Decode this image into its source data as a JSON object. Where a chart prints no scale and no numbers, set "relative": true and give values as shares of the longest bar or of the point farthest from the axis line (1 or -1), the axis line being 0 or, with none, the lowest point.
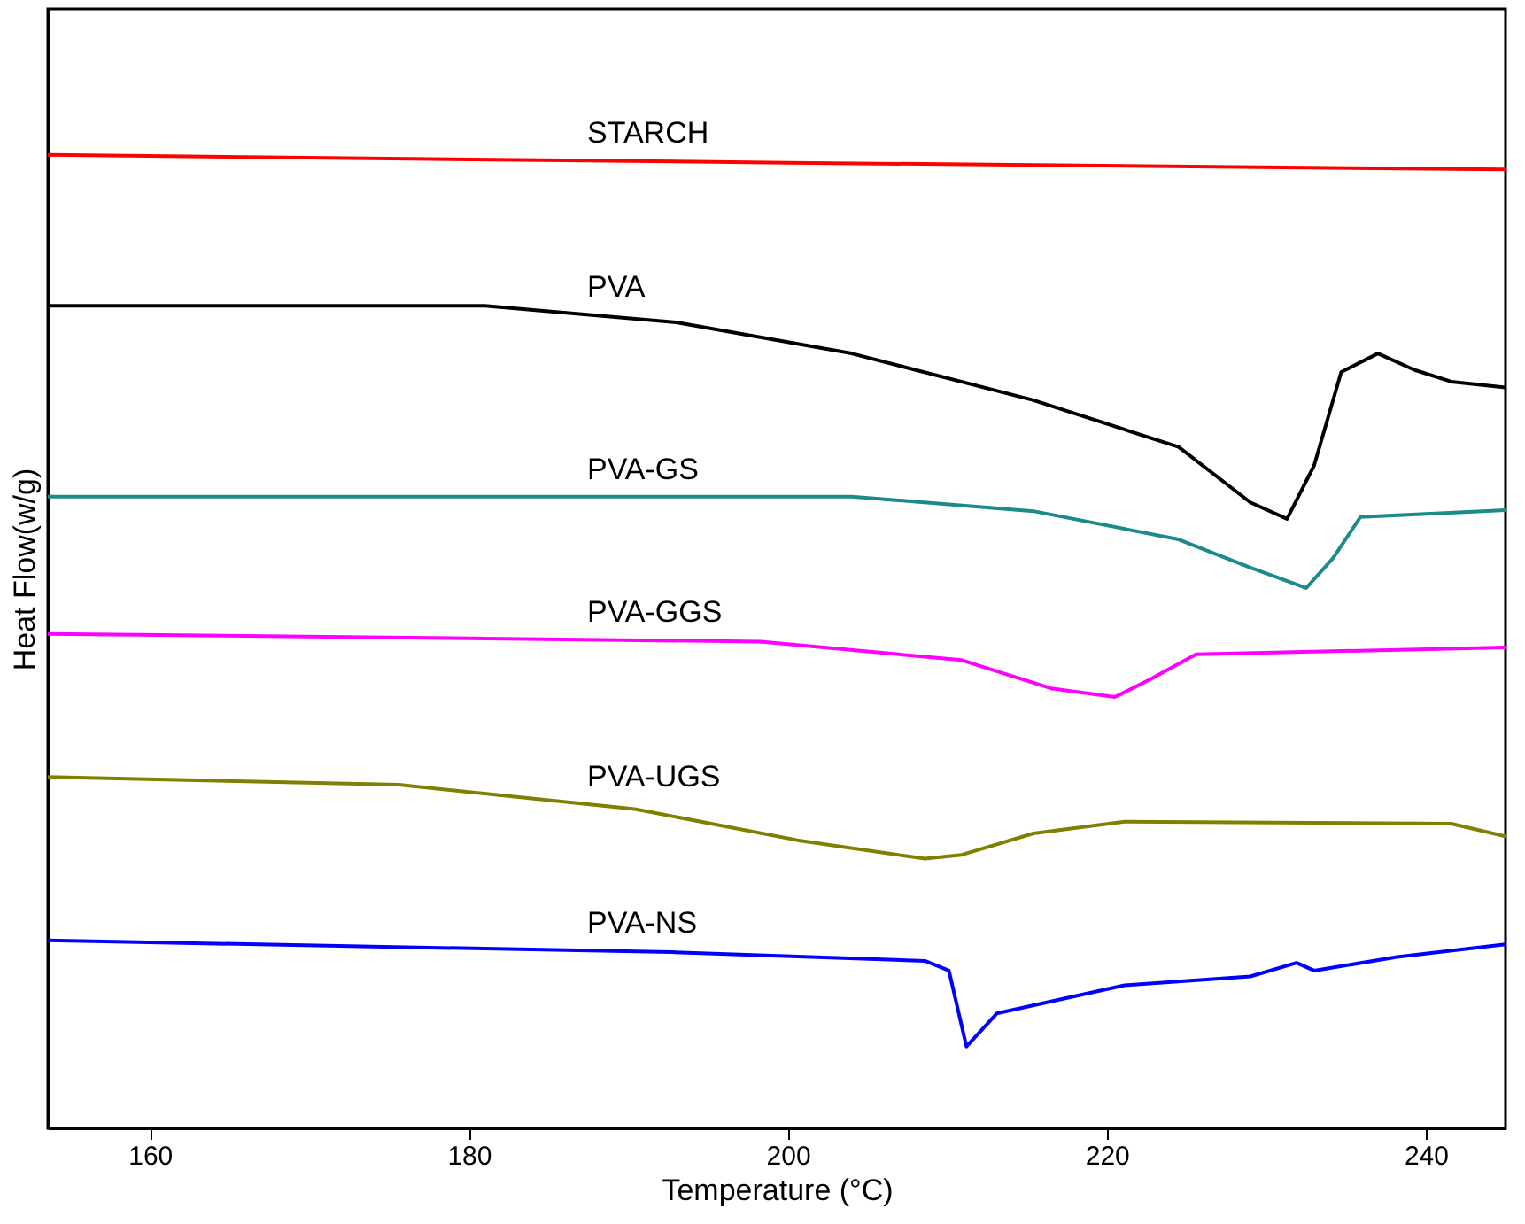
{
  "chart_data": {
    "type": "line",
    "relative": true,
    "xlabel": "Temperature (°C)",
    "ylabel": "Heat Flow(w/g)",
    "xlim": [
      153.6,
      245
    ],
    "xticks": [
      160,
      180,
      200,
      220,
      240
    ],
    "tick_labels": "x",
    "grid": false,
    "marker": "none",
    "line_style": "solid",
    "series": [
      {
        "name": "STARCH",
        "color": "#ff0000",
        "x": [
          153.6,
          200,
          245
        ],
        "values": [
          1.0,
          0.992,
          0.985
        ]
      },
      {
        "name": "PVA",
        "color": "#000000",
        "x": [
          153.6,
          181,
          193,
          204,
          215.4,
          224.5,
          229,
          231.3,
          233,
          234.7,
          237,
          239.3,
          241.6,
          245
        ],
        "values": [
          0.845,
          0.845,
          0.828,
          0.796,
          0.748,
          0.7,
          0.643,
          0.626,
          0.681,
          0.777,
          0.796,
          0.779,
          0.767,
          0.761
        ]
      },
      {
        "name": "PVA-GS",
        "color": "#1a8a8a",
        "x": [
          153.6,
          204,
          215.4,
          224.5,
          229,
          232.5,
          234.2,
          235.9,
          245
        ],
        "values": [
          0.649,
          0.649,
          0.634,
          0.605,
          0.576,
          0.555,
          0.586,
          0.628,
          0.635
        ]
      },
      {
        "name": "PVA-GGS",
        "color": "#ff00ff",
        "x": [
          153.6,
          198.3,
          210.9,
          216.5,
          220.5,
          222.8,
          225.6,
          245
        ],
        "values": [
          0.508,
          0.5,
          0.481,
          0.452,
          0.443,
          0.462,
          0.487,
          0.494
        ]
      },
      {
        "name": "PVA-UGS",
        "color": "#808000",
        "x": [
          153.6,
          175.6,
          190.4,
          200.6,
          208.6,
          210.9,
          215.4,
          221.1,
          241.6,
          245
        ],
        "values": [
          0.361,
          0.353,
          0.328,
          0.296,
          0.277,
          0.281,
          0.303,
          0.315,
          0.313,
          0.3
        ]
      },
      {
        "name": "PVA-NS",
        "color": "#0000ff",
        "x": [
          153.6,
          192.7,
          208.6,
          210.1,
          211.2,
          213.1,
          221.1,
          229,
          231.9,
          233,
          238.2,
          245
        ],
        "values": [
          0.193,
          0.181,
          0.172,
          0.162,
          0.084,
          0.118,
          0.147,
          0.156,
          0.17,
          0.162,
          0.176,
          0.189
        ]
      }
    ]
  }
}
